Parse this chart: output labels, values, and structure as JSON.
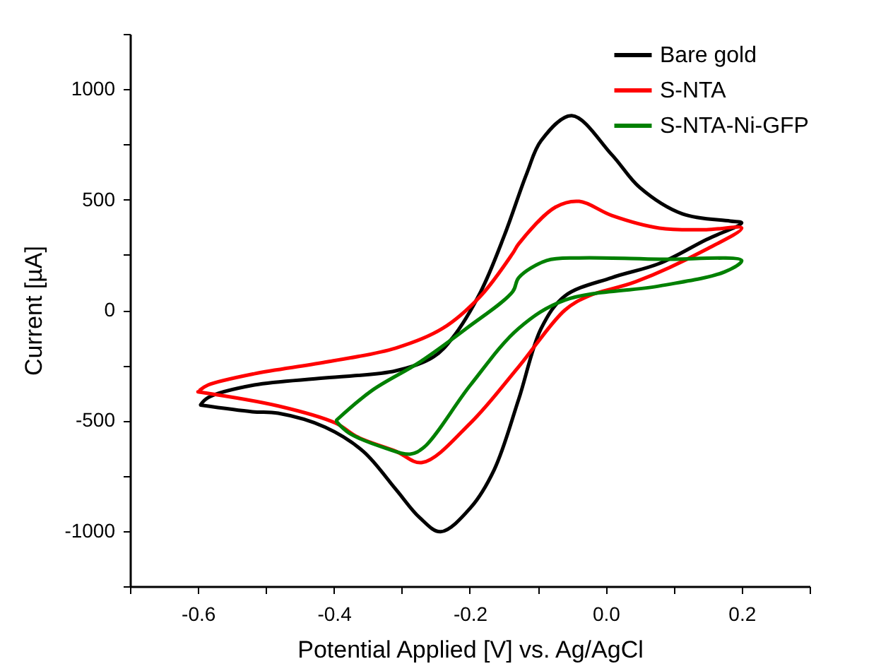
{
  "chart_data": {
    "type": "line",
    "xlabel": "Potential Applied [V] vs. Ag/AgCl",
    "ylabel": "Current [µA]",
    "xlim": [
      -0.7,
      0.3
    ],
    "ylim": [
      -1250,
      1250
    ],
    "xticks": [
      {
        "value": -0.7,
        "label": null
      },
      -0.6,
      {
        "value": -0.5,
        "label": null
      },
      -0.4,
      {
        "value": -0.3,
        "label": null
      },
      -0.2,
      {
        "value": -0.1,
        "label": null
      },
      {
        "value": 0,
        "label": "0.0"
      },
      {
        "value": 0.1,
        "label": null
      },
      0.2,
      {
        "value": 0.3,
        "label": null
      }
    ],
    "yticks": [
      {
        "value": -1250,
        "label": null
      },
      -1000,
      {
        "value": -750,
        "label": null
      },
      -500,
      {
        "value": -250,
        "label": null
      },
      0,
      {
        "value": 250,
        "label": null
      },
      500,
      {
        "value": 750,
        "label": null
      },
      1000,
      {
        "value": 1250,
        "label": null
      }
    ],
    "legend": "top right",
    "series": [
      {
        "name": "Bare gold",
        "color": "#000000",
        "x": [
          -0.596,
          -0.585,
          -0.517,
          -0.413,
          -0.309,
          -0.253,
          -0.226,
          -0.184,
          -0.149,
          -0.116,
          -0.095,
          -0.05,
          0.009,
          0.05,
          0.113,
          0.183,
          0.2,
          0.148,
          0.079,
          0.009,
          -0.06,
          -0.095,
          -0.128,
          -0.164,
          -0.199,
          -0.243,
          -0.274,
          -0.309,
          -0.357,
          -0.413,
          -0.482,
          -0.52,
          -0.596
        ],
        "values": [
          -428,
          -396,
          -339,
          -307,
          -275,
          -211,
          -128,
          83,
          339,
          620,
          767,
          880,
          703,
          555,
          435,
          403,
          395,
          319,
          211,
          147,
          64,
          -83,
          -403,
          -722,
          -895,
          -1003,
          -939,
          -811,
          -639,
          -530,
          -467,
          -460,
          -430
        ]
      },
      {
        "name": "S-NTA",
        "color": "#ff0000",
        "x": [
          -0.597,
          -0.585,
          -0.517,
          -0.413,
          -0.309,
          -0.24,
          -0.184,
          -0.137,
          -0.128,
          -0.074,
          -0.039,
          0.009,
          0.079,
          0.148,
          0.2,
          0.148,
          0.044,
          -0.025,
          -0.06,
          -0.128,
          -0.199,
          -0.27,
          -0.309,
          -0.365,
          -0.398,
          -0.482,
          -0.6
        ],
        "values": [
          -362,
          -339,
          -288,
          -236,
          -172,
          -83,
          64,
          256,
          300,
          466,
          492,
          428,
          371,
          364,
          371,
          275,
          128,
          64,
          0,
          -256,
          -511,
          -690,
          -639,
          -575,
          -511,
          -434,
          -370
        ]
      },
      {
        "name": "S-NTA-Ni-GFP",
        "color": "#008000",
        "x": [
          -0.396,
          -0.344,
          -0.274,
          -0.205,
          -0.137,
          -0.128,
          -0.087,
          -0.039,
          0.079,
          0.2,
          0.175,
          0.079,
          -0.06,
          -0.128,
          -0.199,
          -0.267,
          -0.288,
          -0.323,
          -0.378,
          -0.396
        ],
        "values": [
          -498,
          -364,
          -236,
          -83,
          83,
          147,
          224,
          236,
          230,
          224,
          173,
          109,
          45,
          -83,
          -339,
          -620,
          -652,
          -626,
          -556,
          -505
        ]
      }
    ]
  }
}
